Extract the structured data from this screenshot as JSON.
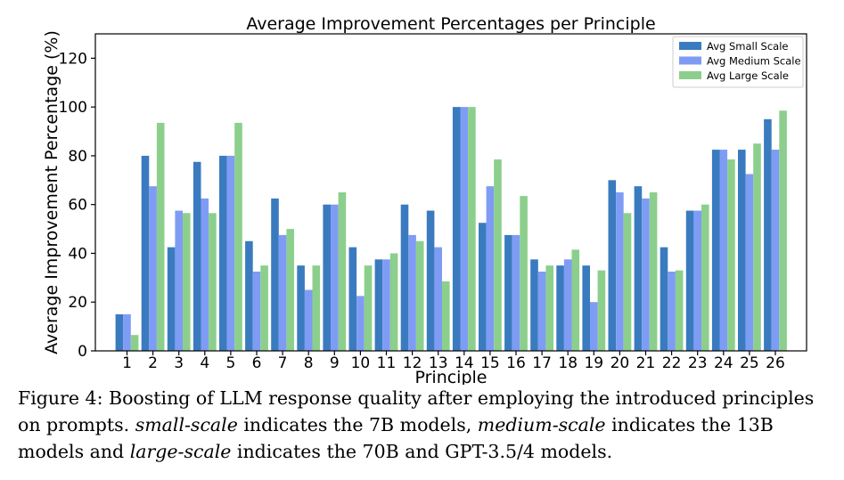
{
  "chart_data": {
    "type": "bar",
    "title": "Average Improvement Percentages per Principle",
    "xlabel": "Principle",
    "ylabel": "Average Improvement Percentage (%)",
    "ylim": [
      0,
      130
    ],
    "yticks": [
      "0",
      "20",
      "40",
      "60",
      "80",
      "100",
      "120"
    ],
    "legend_position": "top-right",
    "grid": false,
    "categories": [
      "1",
      "2",
      "3",
      "4",
      "5",
      "6",
      "7",
      "8",
      "9",
      "10",
      "11",
      "12",
      "13",
      "14",
      "15",
      "16",
      "17",
      "18",
      "19",
      "20",
      "21",
      "22",
      "23",
      "24",
      "25",
      "26"
    ],
    "series": [
      {
        "name": "Avg Small Scale",
        "color": "#3a7bbf",
        "values": [
          15,
          80,
          42.5,
          77.5,
          80,
          45,
          62.5,
          35,
          60,
          42.5,
          37.5,
          60,
          57.5,
          100,
          52.5,
          47.5,
          37.5,
          35,
          35,
          70,
          67.5,
          42.5,
          57.5,
          82.5,
          82.5,
          95
        ]
      },
      {
        "name": "Avg Medium Scale",
        "color": "#7f9cf5",
        "values": [
          15,
          67.5,
          57.5,
          62.5,
          80,
          32.5,
          47.5,
          25,
          60,
          22.5,
          37.5,
          47.5,
          42.5,
          100,
          67.5,
          47.5,
          32.5,
          37.5,
          20,
          65,
          62.5,
          32.5,
          57.5,
          82.5,
          72.5,
          82.5
        ]
      },
      {
        "name": "Avg Large Scale",
        "color": "#8ccf8c",
        "values": [
          6.5,
          93.5,
          56.5,
          56.5,
          93.5,
          35,
          50,
          35,
          65,
          35,
          40,
          45,
          28.5,
          100,
          78.5,
          63.5,
          35,
          41.5,
          33,
          56.5,
          65,
          33,
          60,
          78.5,
          85,
          98.5
        ]
      }
    ]
  },
  "caption": {
    "prefix": "Figure 4: Boosting of LLM response quality after employing the introduced principles on prompts.",
    "small_term": "small-scale",
    "part2": "indicates the 7B models,",
    "medium_term": "medium-scale",
    "part3": "indicates the 13B models and",
    "large_term": "large-scale",
    "part4": "indicates the 70B and GPT-3.5/4 models."
  }
}
